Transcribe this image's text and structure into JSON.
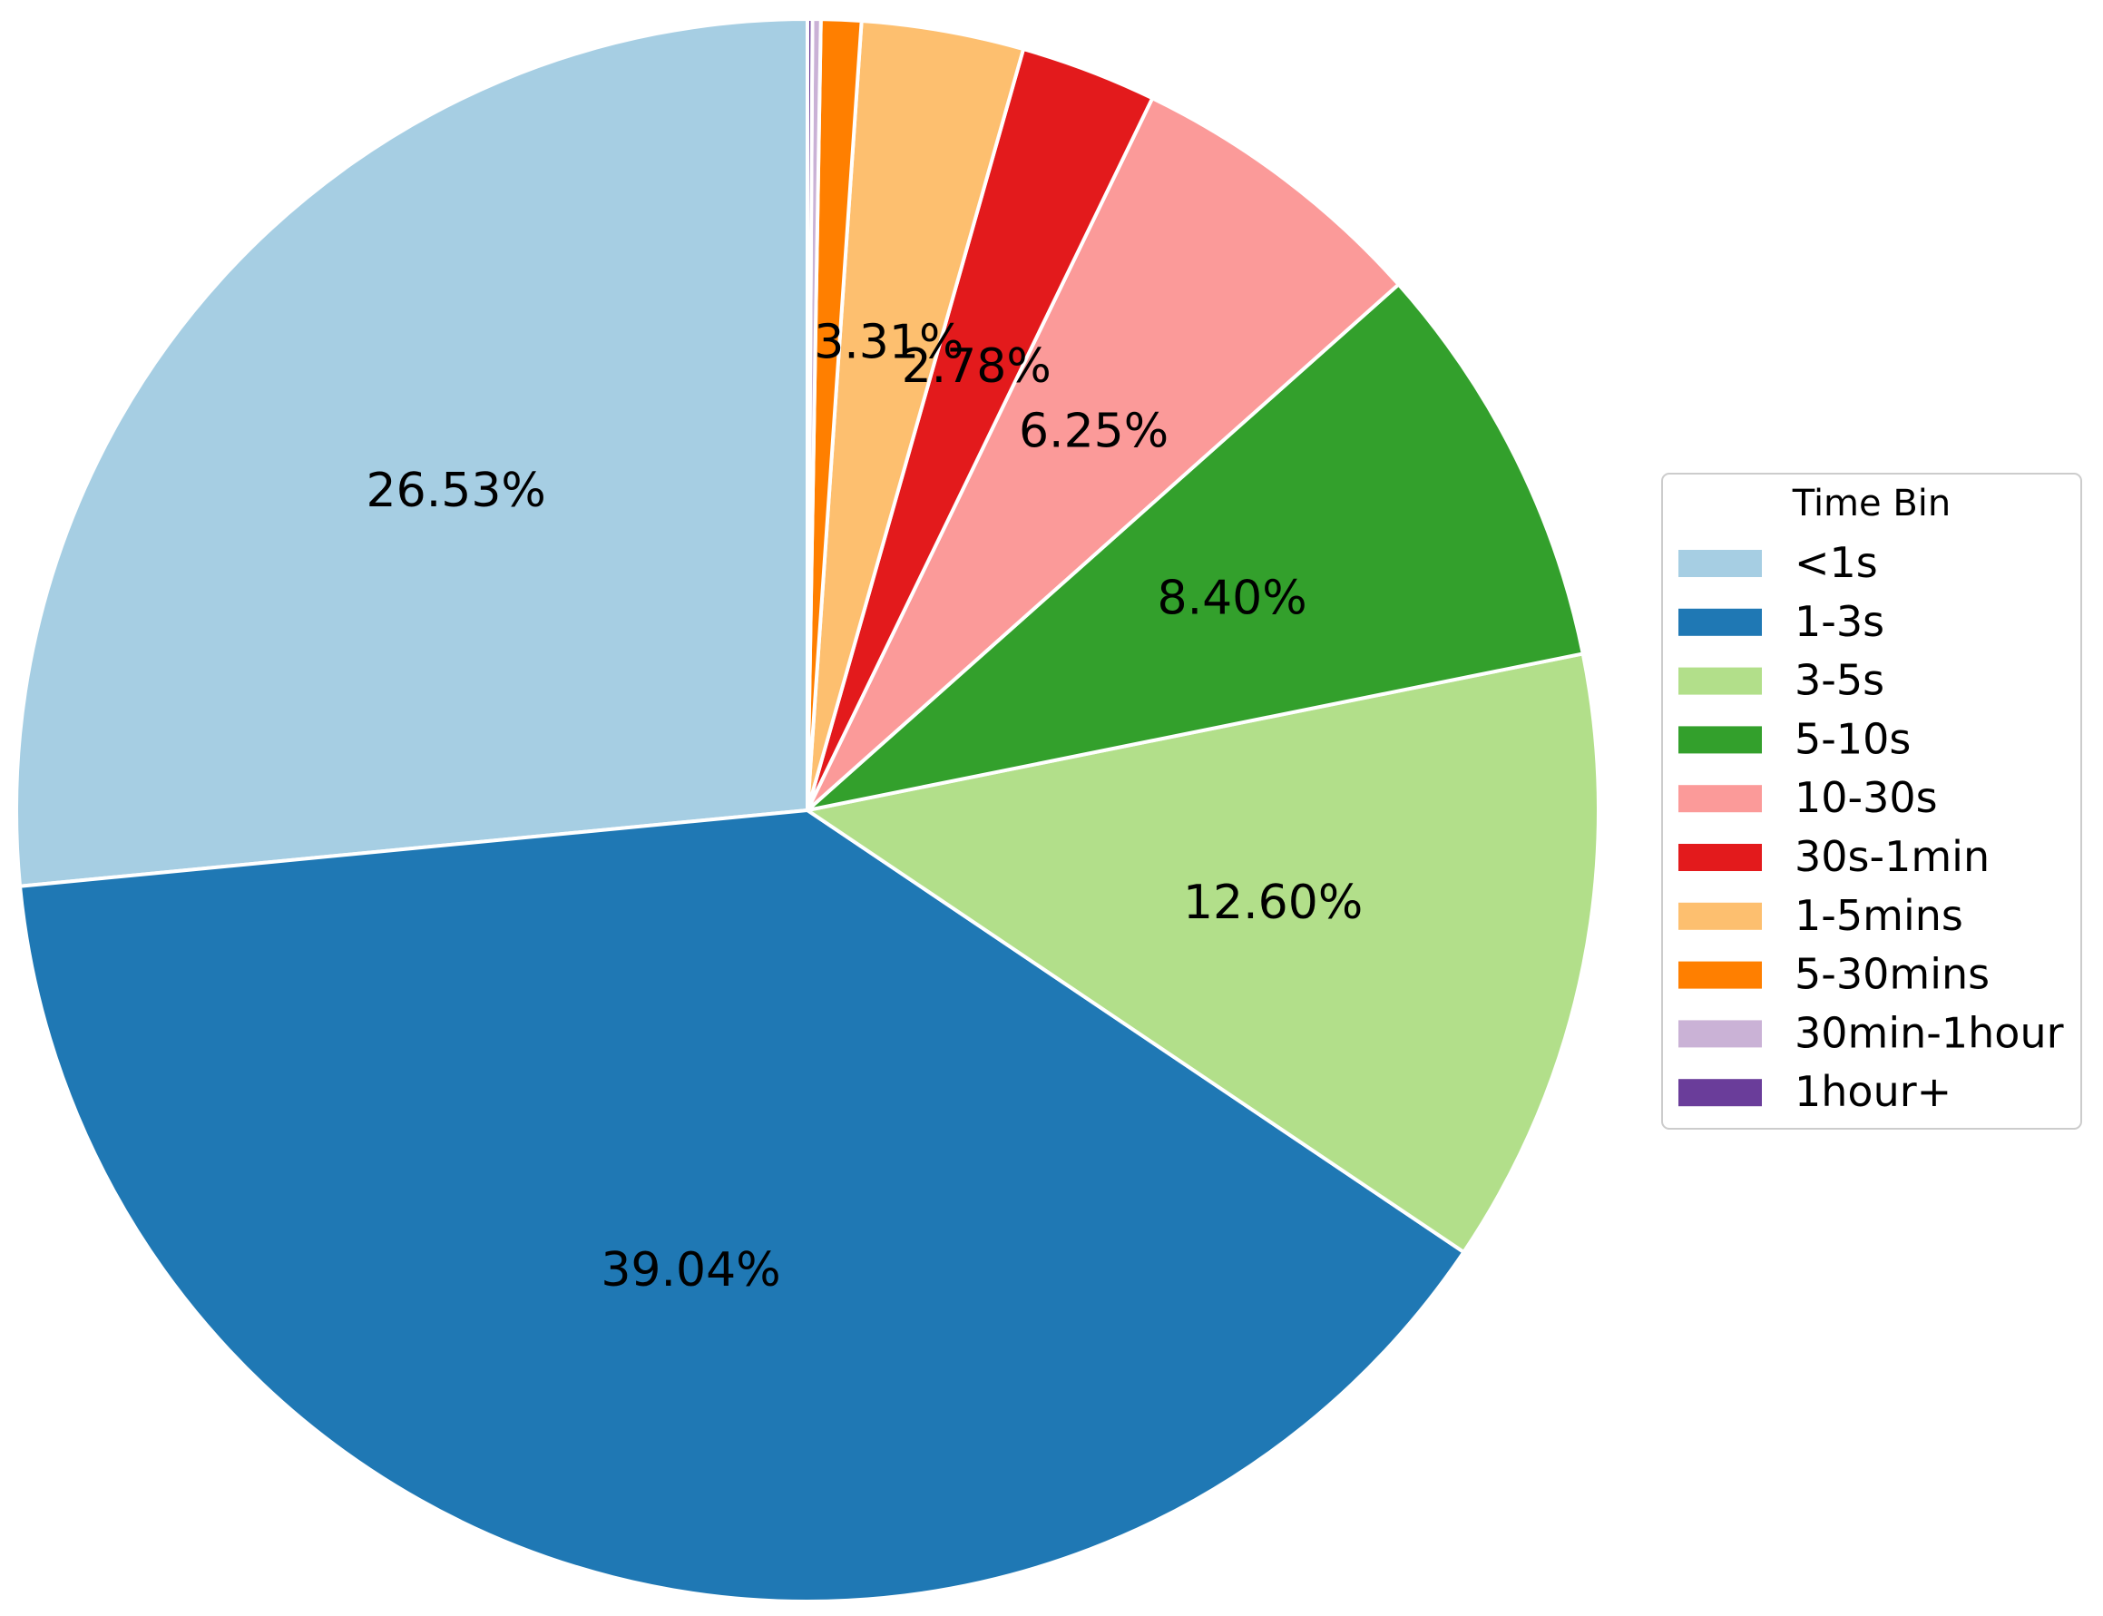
{
  "chart_data": {
    "type": "pie",
    "title": "",
    "legend_title": "Time Bin",
    "legend_position": "right",
    "start_angle_deg": 90,
    "direction": "counterclockwise",
    "slices": [
      {
        "label": "<1s",
        "value": 26.53,
        "pct_label": "26.53%",
        "color": "#a6cee3"
      },
      {
        "label": "1-3s",
        "value": 39.04,
        "pct_label": "39.04%",
        "color": "#1f78b4"
      },
      {
        "label": "3-5s",
        "value": 12.6,
        "pct_label": "12.60%",
        "color": "#b2df8a"
      },
      {
        "label": "5-10s",
        "value": 8.4,
        "pct_label": "8.40%",
        "color": "#33a02c"
      },
      {
        "label": "10-30s",
        "value": 6.25,
        "pct_label": "6.25%",
        "color": "#fb9a99"
      },
      {
        "label": "30s-1min",
        "value": 2.78,
        "pct_label": "2.78%",
        "color": "#e31a1c"
      },
      {
        "label": "1-5mins",
        "value": 3.31,
        "pct_label": "3.31%",
        "color": "#fdbf6f"
      },
      {
        "label": "5-30mins",
        "value": 0.82,
        "pct_label": "",
        "color": "#ff7f00"
      },
      {
        "label": "30min-1hour",
        "value": 0.17,
        "pct_label": "",
        "color": "#cab2d6"
      },
      {
        "label": "1hour+",
        "value": 0.1,
        "pct_label": "",
        "color": "#6a3d9a"
      }
    ]
  }
}
